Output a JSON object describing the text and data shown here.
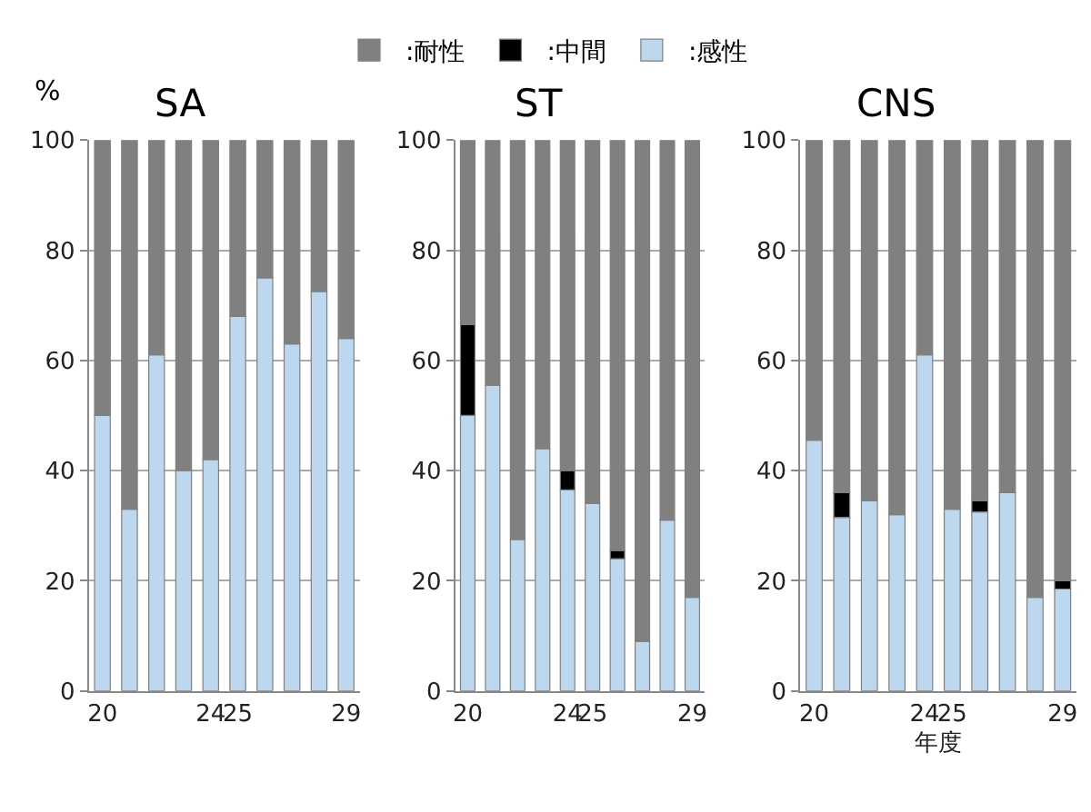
{
  "chart_data": [
    {
      "type": "bar",
      "stacked": true,
      "title": "SA",
      "ylabel": "%",
      "categories": [
        "20",
        null,
        null,
        null,
        "24",
        "25",
        null,
        null,
        null,
        "29"
      ],
      "ylim": [
        0,
        100
      ],
      "yticks": [
        0,
        20,
        40,
        60,
        80,
        100
      ],
      "grid": "y",
      "legend": "top",
      "series": [
        {
          "name": ":感性",
          "color": "#bdd7ee",
          "values": [
            50,
            33,
            61,
            40,
            42,
            68,
            75,
            63,
            72.5,
            64
          ]
        },
        {
          "name": ":中間",
          "color": "#000000",
          "values": [
            null,
            null,
            null,
            null,
            null,
            null,
            null,
            null,
            null,
            null
          ]
        },
        {
          "name": ":耐性",
          "color": "#808080",
          "values": [
            50,
            67,
            39,
            60,
            58,
            32,
            25,
            37,
            27.5,
            36
          ]
        }
      ]
    },
    {
      "type": "bar",
      "stacked": true,
      "title": "ST",
      "categories": [
        "20",
        null,
        null,
        null,
        "24",
        "25",
        null,
        null,
        null,
        "29"
      ],
      "ylim": [
        0,
        100
      ],
      "yticks": [
        0,
        20,
        40,
        60,
        80,
        100
      ],
      "grid": "y",
      "series": [
        {
          "color": "#bdd7ee",
          "values": [
            50,
            55.5,
            27.5,
            44,
            36.5,
            34,
            24,
            9,
            31,
            17
          ]
        },
        {
          "color": "#000000",
          "values": [
            16.5,
            null,
            null,
            null,
            3.5,
            null,
            1.5,
            null,
            null,
            null
          ]
        },
        {
          "color": "#808080",
          "values": [
            33.5,
            44.5,
            72.5,
            56,
            60,
            66,
            74.5,
            91,
            69,
            83
          ]
        }
      ]
    },
    {
      "type": "bar",
      "stacked": true,
      "title": "CNS",
      "xlabel": "年度",
      "categories": [
        "20",
        null,
        null,
        null,
        "24",
        "25",
        null,
        null,
        null,
        "29"
      ],
      "ylim": [
        0,
        100
      ],
      "yticks": [
        0,
        20,
        40,
        60,
        80,
        100
      ],
      "grid": "y",
      "series": [
        {
          "color": "#bdd7ee",
          "values": [
            45.5,
            31.5,
            34.5,
            32,
            61,
            33,
            32.5,
            36,
            17,
            18.5
          ]
        },
        {
          "color": "#000000",
          "values": [
            null,
            4.5,
            null,
            null,
            null,
            null,
            2,
            null,
            null,
            1.5
          ]
        },
        {
          "color": "#808080",
          "values": [
            54.5,
            64,
            65.5,
            68,
            39,
            67,
            65.5,
            64,
            83,
            80
          ]
        }
      ]
    }
  ]
}
